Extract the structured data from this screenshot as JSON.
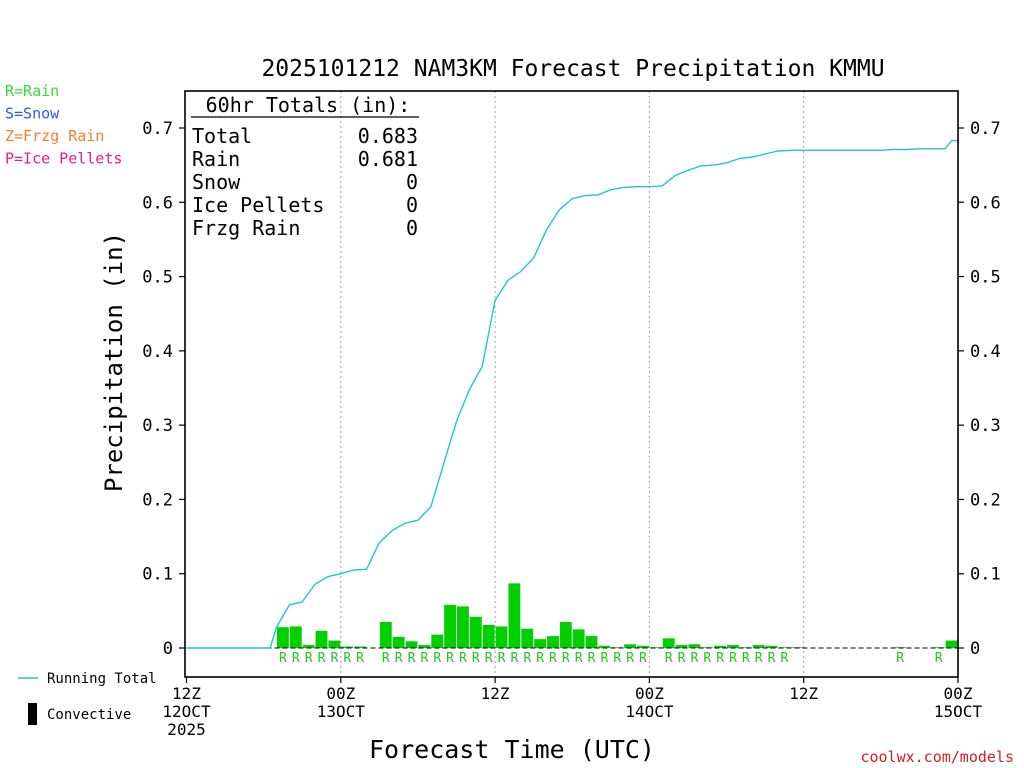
{
  "chart_data": {
    "type": "bar",
    "title": "2025101212 NAM3KM Forecast Precipitation KMMU",
    "xlabel": "Forecast Time (UTC)",
    "ylabel": "Precipitation (in)",
    "ylim": [
      0,
      0.72
    ],
    "xlim": [
      0,
      60
    ],
    "yticks": [
      0,
      0.1,
      0.2,
      0.3,
      0.4,
      0.5,
      0.6,
      0.7
    ],
    "ytick_labels": [
      "0",
      "0.1",
      "0.2",
      "0.3",
      "0.4",
      "0.5",
      "0.6",
      "0.7"
    ],
    "xticks": [
      {
        "hour": 0,
        "lines": [
          "12Z",
          "12OCT",
          "2025"
        ]
      },
      {
        "hour": 12,
        "lines": [
          "00Z",
          "13OCT"
        ]
      },
      {
        "hour": 24,
        "lines": [
          "12Z"
        ]
      },
      {
        "hour": 36,
        "lines": [
          "00Z",
          "14OCT"
        ]
      },
      {
        "hour": 48,
        "lines": [
          "12Z"
        ]
      },
      {
        "hour": 60,
        "lines": [
          "00Z",
          "15OCT"
        ]
      }
    ],
    "grid": "vertical dotted at 00Z and 12Z",
    "type_legend": [
      {
        "label": "R=Rain",
        "color": "#33dd33"
      },
      {
        "label": "S=Snow",
        "color": "#3355ee"
      },
      {
        "label": "Z=Frzg Rain",
        "color": "#f08030"
      },
      {
        "label": "P=Ice Pellets",
        "color": "#e0208a"
      }
    ],
    "totals": {
      "title": "60hr Totals (in):",
      "rows": [
        {
          "label": "Total",
          "value": "0.683"
        },
        {
          "label": "Rain",
          "value": "0.681"
        },
        {
          "label": "Snow",
          "value": "0"
        },
        {
          "label": "Ice Pellets",
          "value": "0"
        },
        {
          "label": "Frzg Rain",
          "value": "0"
        }
      ]
    },
    "series": [
      {
        "name": "Running Total",
        "kind": "line",
        "color": "#20c8c8",
        "x": [
          0,
          1,
          2,
          3,
          4,
          5,
          6,
          6.5,
          7,
          8,
          9,
          10,
          11,
          12,
          13,
          14,
          15,
          16,
          17,
          18,
          19,
          20,
          21,
          22,
          23,
          24,
          25,
          26,
          27,
          28,
          29,
          30,
          31,
          32,
          33,
          34,
          35,
          36,
          37,
          38,
          39,
          40,
          41,
          42,
          43,
          44,
          45,
          46,
          47,
          48,
          49,
          50,
          51,
          52,
          53,
          54,
          55,
          56,
          57,
          58,
          59,
          59.5,
          60
        ],
        "values": [
          0,
          0,
          0,
          0,
          0,
          0,
          0,
          0,
          0.028,
          0.058,
          0.062,
          0.086,
          0.096,
          0.1,
          0.105,
          0.106,
          0.142,
          0.158,
          0.168,
          0.172,
          0.19,
          0.248,
          0.305,
          0.348,
          0.379,
          0.468,
          0.495,
          0.507,
          0.525,
          0.563,
          0.59,
          0.605,
          0.609,
          0.61,
          0.617,
          0.62,
          0.621,
          0.621,
          0.622,
          0.636,
          0.643,
          0.649,
          0.65,
          0.653,
          0.659,
          0.661,
          0.665,
          0.669,
          0.67,
          0.67,
          0.67,
          0.67,
          0.67,
          0.67,
          0.67,
          0.67,
          0.671,
          0.671,
          0.672,
          0.672,
          0.672,
          0.683,
          0.683
        ]
      },
      {
        "name": "Rain",
        "kind": "bar",
        "color": "#00d000",
        "hours": [
          8,
          9,
          10,
          11,
          12,
          13,
          14,
          16,
          17,
          18,
          19,
          20,
          21,
          22,
          23,
          24,
          25,
          26,
          27,
          28,
          29,
          30,
          31,
          32,
          33,
          34,
          35,
          36,
          37,
          38,
          39,
          40,
          41,
          42,
          43,
          44,
          45,
          46,
          47,
          48,
          56,
          59,
          60
        ],
        "values": [
          0.028,
          0.029,
          0.004,
          0.023,
          0.01,
          0.002,
          0.002,
          0.035,
          0.015,
          0.009,
          0.004,
          0.018,
          0.058,
          0.056,
          0.042,
          0.031,
          0.029,
          0.087,
          0.026,
          0.012,
          0.016,
          0.035,
          0.025,
          0.016,
          0.003,
          0.001,
          0.005,
          0.003,
          0.001,
          0.013,
          0.004,
          0.005,
          0.001,
          0.003,
          0.004,
          0.001,
          0.004,
          0.003,
          0.001,
          0.001,
          0.001,
          0.001,
          0.01
        ]
      }
    ],
    "rain_letter": "R",
    "rain_letter_hours": [
      8,
      9,
      10,
      11,
      12,
      13,
      14,
      16,
      17,
      18,
      19,
      20,
      21,
      22,
      23,
      24,
      25,
      26,
      27,
      28,
      29,
      30,
      31,
      32,
      33,
      34,
      35,
      36,
      38,
      39,
      40,
      41,
      42,
      43,
      44,
      45,
      46,
      47,
      56,
      59
    ],
    "legend": [
      {
        "label": "Running Total",
        "marker": "line",
        "color": "#20c8c8"
      },
      {
        "label": "Convective",
        "marker": "box",
        "color": "#000000"
      }
    ],
    "credit": "coolwx.com/models"
  }
}
